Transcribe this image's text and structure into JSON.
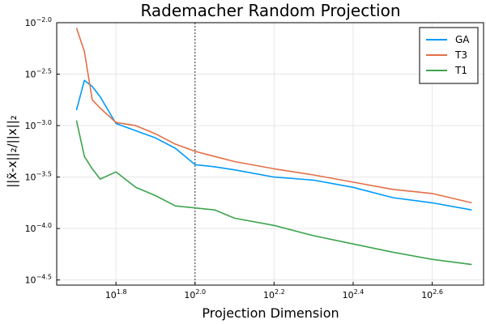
{
  "chart_data": {
    "type": "line",
    "title": "Rademacher Random Projection",
    "xlabel": "Projection Dimension",
    "ylabel": "||x̃-x||₂/||x||₂",
    "xscale": "log10",
    "yscale": "log10",
    "xlim_log10": [
      1.65,
      2.73
    ],
    "ylim_log10": [
      -4.55,
      -2.0
    ],
    "xticks": [
      {
        "log10": 1.8,
        "base": "10",
        "exp": "1.8"
      },
      {
        "log10": 2.0,
        "base": "10",
        "exp": "2.0"
      },
      {
        "log10": 2.2,
        "base": "10",
        "exp": "2.2"
      },
      {
        "log10": 2.4,
        "base": "10",
        "exp": "2.4"
      },
      {
        "log10": 2.6,
        "base": "10",
        "exp": "2.6"
      }
    ],
    "yticks": [
      {
        "log10": -2.0,
        "base": "10",
        "exp": "−2.0"
      },
      {
        "log10": -2.5,
        "base": "10",
        "exp": "−2.5"
      },
      {
        "log10": -3.0,
        "base": "10",
        "exp": "−3.0"
      },
      {
        "log10": -3.5,
        "base": "10",
        "exp": "−3.5"
      },
      {
        "log10": -4.0,
        "base": "10",
        "exp": "−4.0"
      },
      {
        "log10": -4.5,
        "base": "10",
        "exp": "−4.5"
      }
    ],
    "vline_log10": 2.0,
    "grid": true,
    "legend_position": "top-right",
    "x_log10": [
      1.7,
      1.72,
      1.74,
      1.76,
      1.8,
      1.85,
      1.9,
      1.95,
      2.0,
      2.05,
      2.1,
      2.2,
      2.3,
      2.4,
      2.5,
      2.6,
      2.7
    ],
    "series": [
      {
        "name": "GA",
        "color": "#009af9",
        "y_log10": [
          -2.85,
          -2.56,
          -2.62,
          -2.72,
          -2.98,
          -3.05,
          -3.12,
          -3.22,
          -3.38,
          -3.4,
          -3.43,
          -3.5,
          -3.53,
          -3.6,
          -3.7,
          -3.75,
          -3.82
        ]
      },
      {
        "name": "T3",
        "color": "#e26f46",
        "y_log10": [
          -2.05,
          -2.28,
          -2.75,
          -2.83,
          -2.97,
          -3.0,
          -3.08,
          -3.18,
          -3.25,
          -3.3,
          -3.35,
          -3.42,
          -3.48,
          -3.55,
          -3.62,
          -3.66,
          -3.75
        ]
      },
      {
        "name": "T1",
        "color": "#3da44d",
        "y_log10": [
          -2.95,
          -3.3,
          -3.42,
          -3.52,
          -3.45,
          -3.6,
          -3.68,
          -3.78,
          -3.8,
          -3.82,
          -3.9,
          -3.97,
          -4.07,
          -4.15,
          -4.23,
          -4.3,
          -4.35
        ]
      }
    ]
  }
}
